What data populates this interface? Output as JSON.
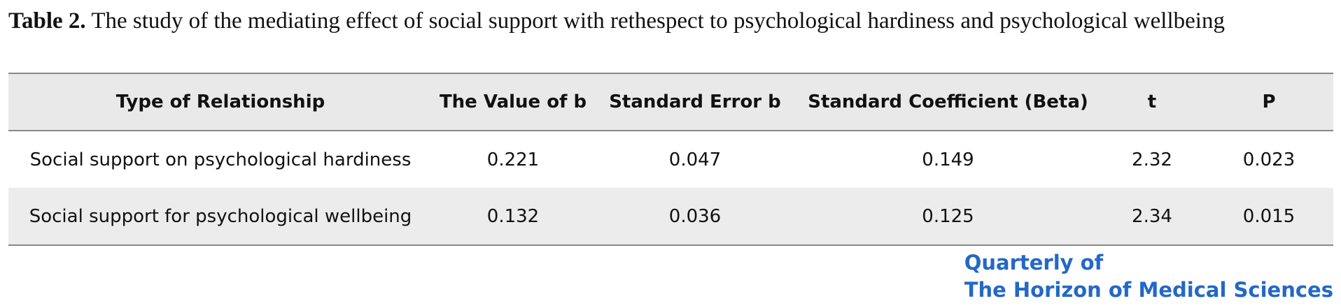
{
  "caption": {
    "label": "Table 2.",
    "text": "The study of the mediating effect of social support with rethespect to psychological hardiness and psychological wellbeing"
  },
  "table": {
    "headers": [
      "Type of Relationship",
      "The Value of b",
      "Standard Error b",
      "Standard Coefficient (Beta)",
      "t",
      "P"
    ],
    "rows": [
      [
        "Social support on psychological hardiness",
        "0.221",
        "0.047",
        "0.149",
        "2.32",
        "0.023"
      ],
      [
        "Social support for psychological wellbeing",
        "0.132",
        "0.036",
        "0.125",
        "2.34",
        "0.015"
      ]
    ]
  },
  "logo": {
    "line1": "Quarterly of",
    "line2": "The Horizon of Medical Sciences"
  }
}
